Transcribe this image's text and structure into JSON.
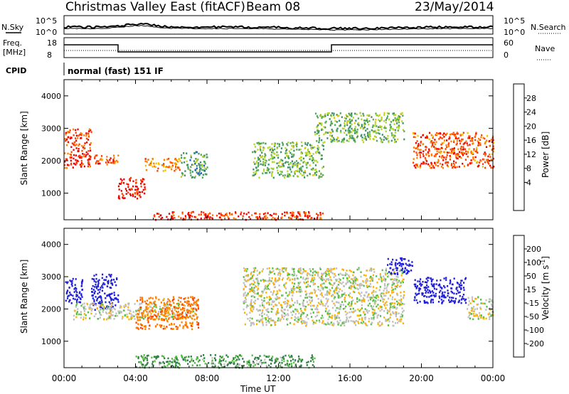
{
  "header": {
    "station": "Christmas Valley East (fitACF)",
    "beam": "Beam 08",
    "date": "23/May/2014"
  },
  "panels": {
    "nsky_label": "N.Sky",
    "nsearch_label": "N.Search",
    "freq_label_1": "Freq.",
    "freq_label_2": "[MHz]",
    "nave_label": "Nave",
    "cpid_label": "CPID",
    "cpid_text": "normal (fast) 151 IF",
    "noise_ticks_left": [
      "10^5",
      "10^0"
    ],
    "noise_ticks_right": [
      "10^5",
      "10^0"
    ],
    "freq_ticks": [
      "18",
      "8"
    ],
    "nave_ticks": [
      "60",
      "0"
    ],
    "power_colorbar_label": "Power [dB]",
    "power_ticks": [
      "28",
      "24",
      "20",
      "16",
      "12",
      "8",
      "4"
    ],
    "velocity_colorbar_label": "Velocity [m s",
    "velocity_unit_sup": "-1",
    "velocity_unit_close": "]",
    "velocity_ticks": [
      "200",
      "100",
      "50",
      "15",
      "-15",
      "-50",
      "-100",
      "-200"
    ]
  },
  "colors": {
    "power": [
      "#0000dd",
      "#2255cc",
      "#3f8f6a",
      "#55aa55",
      "#b6d52a",
      "#f0c000",
      "#ff8000",
      "#ff4000",
      "#ee0000"
    ],
    "velocity": [
      "#2020d8",
      "#3b6fb0",
      "#2f7d45",
      "#55c040",
      "#c0c0c0",
      "#ffb000",
      "#ff8000",
      "#ff4000",
      "#ee0000"
    ]
  },
  "chart_data": [
    {
      "type": "heatmap",
      "title": "Power",
      "xlabel": "Time UT",
      "ylabel": "Slant Range [km]",
      "x_ticks": [
        "00:00",
        "04:00",
        "08:00",
        "12:00",
        "16:00",
        "20:00",
        "00:00"
      ],
      "y_ticks": [
        "1000",
        "2000",
        "3000",
        "4000"
      ],
      "xlim_hours": [
        0,
        24
      ],
      "ylim_km": [
        180,
        4500
      ],
      "colorbar": {
        "label": "Power [dB]",
        "range": [
          0,
          30
        ],
        "ticks": [
          4,
          8,
          12,
          16,
          20,
          24,
          28
        ]
      },
      "features": [
        {
          "t_start": 0.0,
          "t_end": 1.5,
          "range_start_km": 1800,
          "range_end_km": 3000,
          "power_db": 26
        },
        {
          "t_start": 1.5,
          "t_end": 3.0,
          "range_start_km": 1900,
          "range_end_km": 2200,
          "power_db": 24
        },
        {
          "t_start": 3.0,
          "t_end": 4.5,
          "range_start_km": 850,
          "range_end_km": 1500,
          "power_db": 28
        },
        {
          "t_start": 4.5,
          "t_end": 6.5,
          "range_start_km": 1700,
          "range_end_km": 2100,
          "power_db": 22
        },
        {
          "t_start": 6.5,
          "t_end": 8.0,
          "range_start_km": 1500,
          "range_end_km": 2300,
          "power_db": 10
        },
        {
          "t_start": 5.0,
          "t_end": 14.5,
          "range_start_km": 200,
          "range_end_km": 450,
          "power_db": 26
        },
        {
          "t_start": 10.5,
          "t_end": 14.5,
          "range_start_km": 1500,
          "range_end_km": 2600,
          "power_db": 12
        },
        {
          "t_start": 14.0,
          "t_end": 19.0,
          "range_start_km": 2600,
          "range_end_km": 3500,
          "power_db": 12
        },
        {
          "t_start": 19.5,
          "t_end": 24.0,
          "range_start_km": 1800,
          "range_end_km": 2900,
          "power_db": 24
        }
      ]
    },
    {
      "type": "heatmap",
      "title": "Velocity",
      "xlabel": "Time UT",
      "ylabel": "Slant Range [km]",
      "x_ticks": [
        "00:00",
        "04:00",
        "08:00",
        "12:00",
        "16:00",
        "20:00",
        "00:00"
      ],
      "y_ticks": [
        "1000",
        "2000",
        "3000",
        "4000"
      ],
      "xlim_hours": [
        0,
        24
      ],
      "ylim_km": [
        180,
        4500
      ],
      "colorbar": {
        "label": "Velocity [m s-1]",
        "range": [
          -250,
          250
        ],
        "ticks": [
          200,
          100,
          50,
          15,
          -15,
          -50,
          -100,
          -200
        ]
      },
      "features": [
        {
          "t_start": 0.0,
          "t_end": 1.0,
          "range_start_km": 2200,
          "range_end_km": 3000,
          "velocity_ms": 200
        },
        {
          "t_start": 1.5,
          "t_end": 3.0,
          "range_start_km": 2000,
          "range_end_km": 3100,
          "velocity_ms": 180
        },
        {
          "t_start": 0.5,
          "t_end": 7.5,
          "range_start_km": 1700,
          "range_end_km": 2200,
          "velocity_ms": 0
        },
        {
          "t_start": 4.0,
          "t_end": 7.5,
          "range_start_km": 1400,
          "range_end_km": 2400,
          "velocity_ms": -60
        },
        {
          "t_start": 4.0,
          "t_end": 14.0,
          "range_start_km": 200,
          "range_end_km": 600,
          "velocity_ms": 40
        },
        {
          "t_start": 10.0,
          "t_end": 19.0,
          "range_start_km": 1500,
          "range_end_km": 3300,
          "velocity_ms": 0
        },
        {
          "t_start": 18.0,
          "t_end": 19.5,
          "range_start_km": 3100,
          "range_end_km": 3600,
          "velocity_ms": 200
        },
        {
          "t_start": 19.5,
          "t_end": 22.5,
          "range_start_km": 2200,
          "range_end_km": 3000,
          "velocity_ms": 220
        },
        {
          "t_start": 22.5,
          "t_end": 24.0,
          "range_start_km": 1700,
          "range_end_km": 2400,
          "velocity_ms": 0
        }
      ]
    }
  ]
}
